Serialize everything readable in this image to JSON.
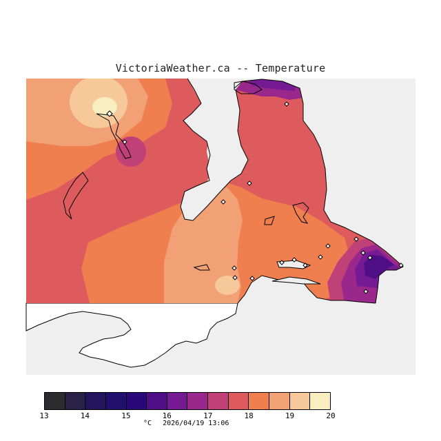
{
  "title": "VictoriaWeather.ca -- Temperature",
  "legend": {
    "units": "°C",
    "timestamp": "2026/04/19 13:06",
    "ticks": [
      "13",
      "14",
      "15",
      "16",
      "17",
      "18",
      "19",
      "20"
    ],
    "bins": [
      {
        "range": "13-13.5",
        "color": "#2c2c30"
      },
      {
        "range": "13.5-14",
        "color": "#2a2148"
      },
      {
        "range": "14-14.5",
        "color": "#24145e"
      },
      {
        "range": "14.5-15",
        "color": "#22106e"
      },
      {
        "range": "15-15.5",
        "color": "#2a087a"
      },
      {
        "range": "15.5-16",
        "color": "#4d0e86"
      },
      {
        "range": "16-16.5",
        "color": "#741a92"
      },
      {
        "range": "16.5-17",
        "color": "#9a288c"
      },
      {
        "range": "17-17.5",
        "color": "#c04177"
      },
      {
        "range": "17.5-18",
        "color": "#de5b5d"
      },
      {
        "range": "18-18.5",
        "color": "#f07f50"
      },
      {
        "range": "18.5-19",
        "color": "#f2a176"
      },
      {
        "range": "19-19.5",
        "color": "#f6c89a"
      },
      {
        "range": "19.5-20",
        "color": "#f8eec0"
      }
    ]
  },
  "colors": {
    "water": "#efefef",
    "land_white": "#ffffff",
    "coast": "#000000"
  }
}
